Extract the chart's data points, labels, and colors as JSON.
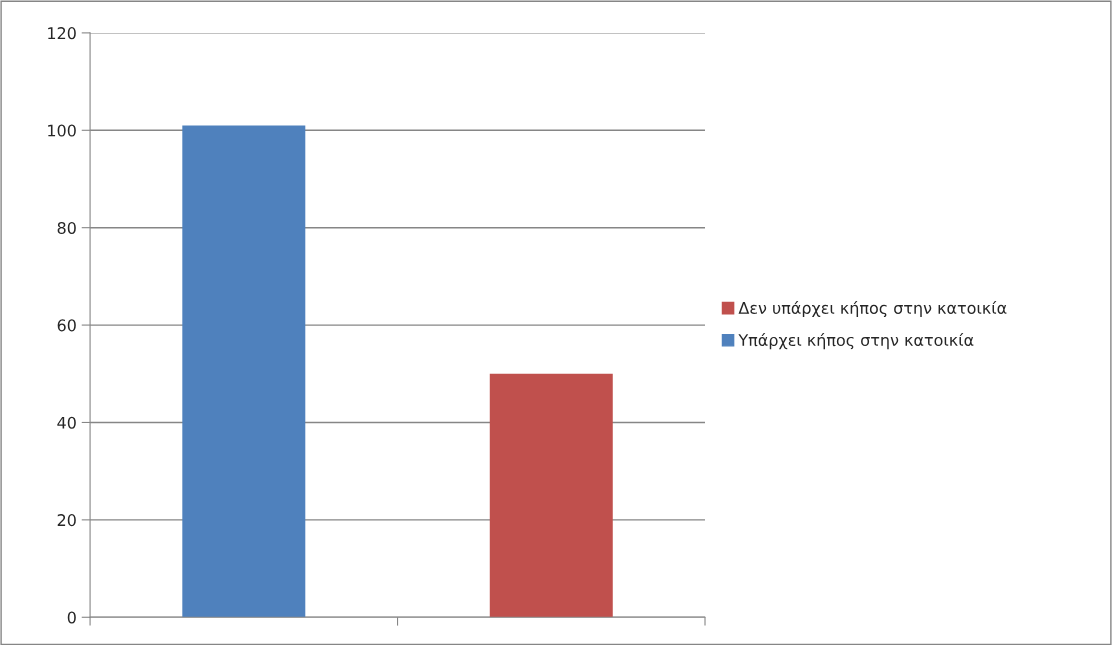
{
  "chart_data": {
    "type": "bar",
    "categories": [
      null,
      null
    ],
    "series": [
      {
        "name": "Υπάρχει κήπος στην κατοικία",
        "color": "#4f81bd",
        "values": [
          101,
          null
        ]
      },
      {
        "name": "Δεν υπάρχει κήπος στην κατοικία",
        "color": "#c0504d",
        "values": [
          null,
          50
        ]
      }
    ],
    "stacked": true,
    "ylim": [
      0,
      120
    ],
    "yticks": [
      0,
      20,
      40,
      60,
      80,
      100,
      120
    ],
    "grid": "y",
    "legend": "right"
  }
}
